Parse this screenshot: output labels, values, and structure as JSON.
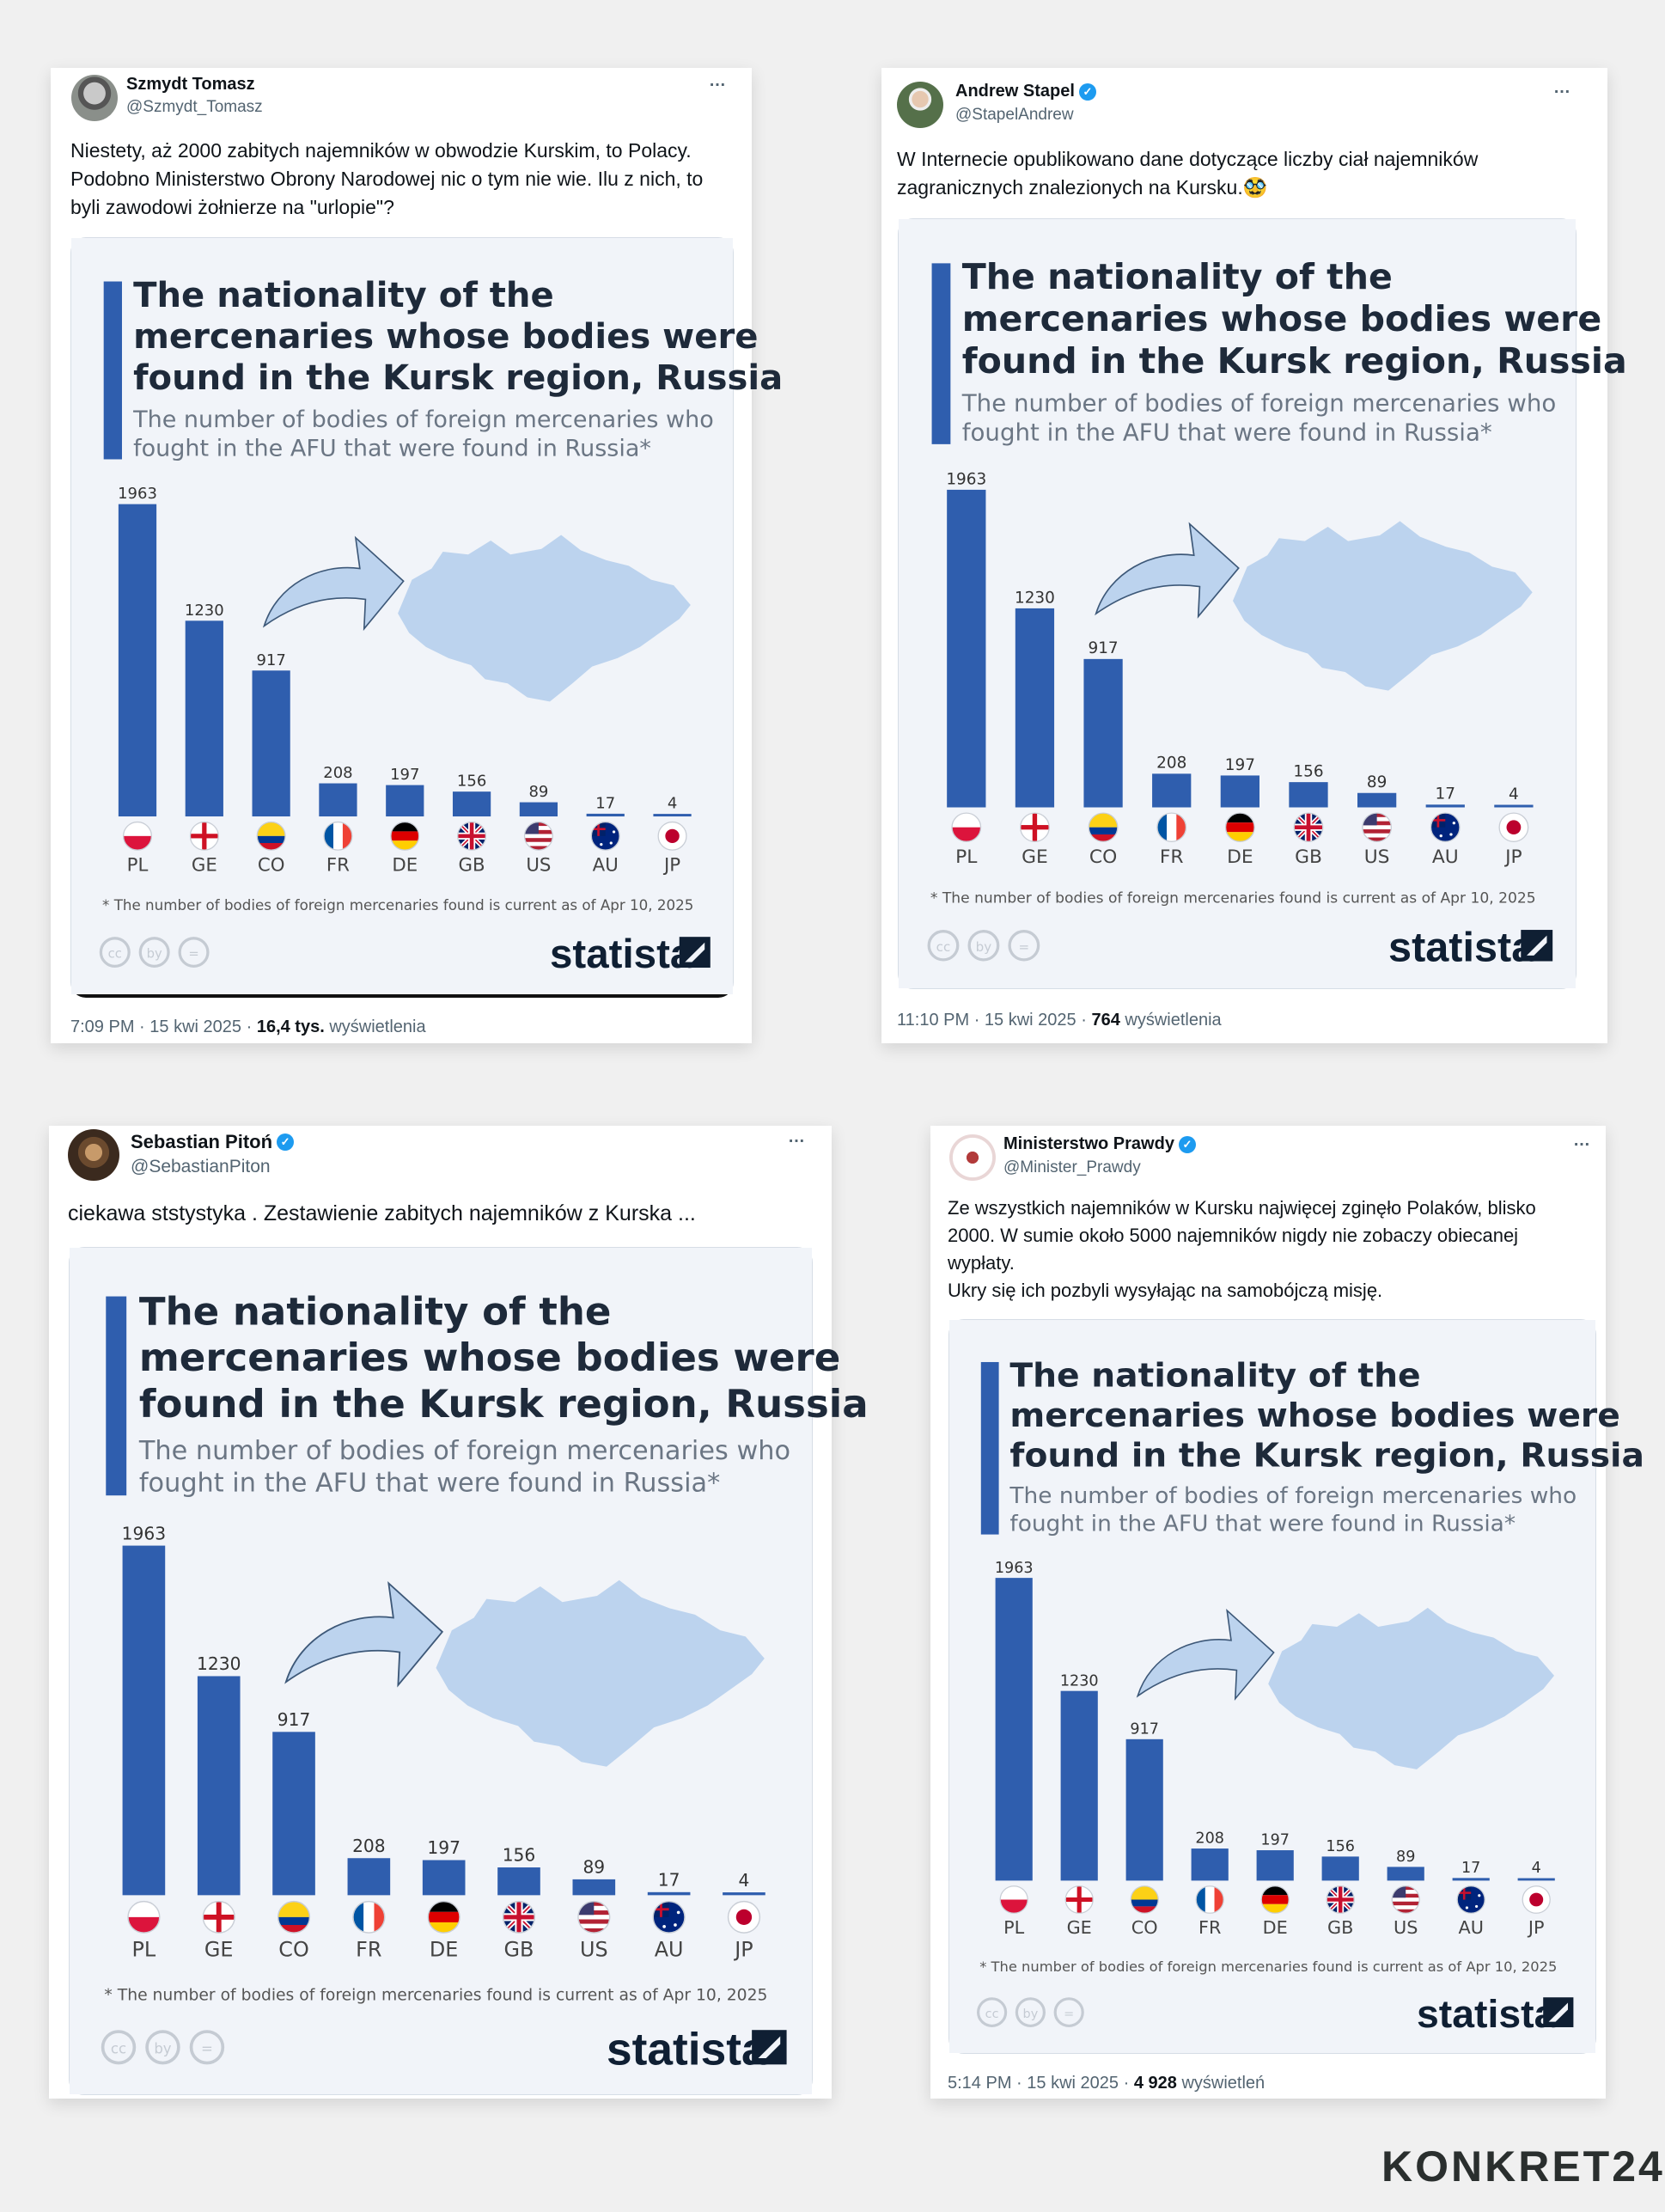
{
  "tweets": [
    {
      "author": "Szmydt Tomasz",
      "handle": "@Szmydt_Tomasz",
      "verified": false,
      "text_lines": [
        "Niestety, aż 2000 zabitych najemników w obwodzie Kurskim, to Polacy.",
        "Podobno Ministerstwo Obrony Narodowej nic o tym nie wie. Ilu z nich, to",
        "byli zawodowi żołnierze na \"urlopie\"?"
      ],
      "time": "7:09 PM",
      "date": "15 kwi 2025",
      "views_count": "16,4 tys.",
      "views_label": "wyświetlenia"
    },
    {
      "author": "Andrew Stapel",
      "handle": "@StapelAndrew",
      "verified": true,
      "text_lines": [
        "W Internecie opublikowano dane dotyczące liczby ciał najemników",
        "zagranicznych znalezionych na Kursku.🥸"
      ],
      "time": "11:10 PM",
      "date": "15 kwi 2025",
      "views_count": "764",
      "views_label": "wyświetlenia"
    },
    {
      "author": "Sebastian Pitoń",
      "handle": "@SebastianPiton",
      "verified": true,
      "text_lines": [
        "ciekawa ststystyka . Zestawienie zabitych najemników z Kurska ..."
      ]
    },
    {
      "author": "Ministerstwo Prawdy",
      "handle": "@Minister_Prawdy",
      "verified": true,
      "text_lines": [
        "Ze wszystkich najemników w Kursku najwięcej zginęło Polaków, blisko",
        "2000. W sumie około 5000 najemników nigdy nie zobaczy obiecanej",
        "wypłaty.",
        "Ukry się ich pozbyli wysyłając na samobójczą misję."
      ],
      "time": "5:14 PM",
      "date": "15 kwi 2025",
      "views_count": "4 928",
      "views_label": "wyświetleń"
    }
  ],
  "more_icon": "…",
  "verified_icon": "✓",
  "separator": "·",
  "chart_data": {
    "type": "bar",
    "title_lines": [
      "The nationality of the",
      "mercenaries whose bodies were",
      "found in the Kursk region, Russia"
    ],
    "subtitle_lines": [
      "The number of bodies of foreign mercenaries who",
      "fought in the AFU that were found in Russia*"
    ],
    "categories": [
      "PL",
      "GE",
      "CO",
      "FR",
      "DE",
      "GB",
      "US",
      "AU",
      "JP"
    ],
    "values": [
      1963,
      1230,
      917,
      208,
      197,
      156,
      89,
      17,
      4
    ],
    "value_labels": [
      "1963",
      "1230",
      "917",
      "208",
      "197",
      "156",
      "89",
      "17",
      "4"
    ],
    "flag_icons": [
      "poland-flag-icon",
      "england-flag-icon",
      "colombia-flag-icon",
      "france-flag-icon",
      "germany-flag-icon",
      "uk-flag-icon",
      "usa-flag-icon",
      "australia-flag-icon",
      "japan-flag-icon"
    ],
    "footnote": "* The number of bodies of foreign mercenaries found is current as of Apr 10, 2025",
    "source": "statista",
    "license_icons": [
      "cc",
      "by",
      "="
    ],
    "xlabel": "",
    "ylabel": "",
    "ylim": [
      0,
      1963
    ],
    "grid": false,
    "colors": {
      "bar": "#2f5eae",
      "background": "#f1f4f9",
      "accent_bar": "#2f5eae",
      "map": "#bcd3ee",
      "title": "#1e2a3a",
      "subtitle": "#6b7684"
    }
  },
  "footer_logo": "KONKRET24"
}
